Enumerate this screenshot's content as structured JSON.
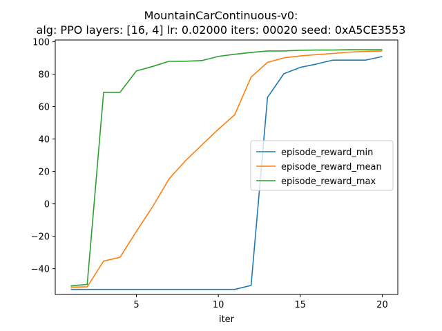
{
  "chart_data": {
    "type": "line",
    "title_line1": "MountainCarContinuous-v0:",
    "title_line2": "alg: PPO layers: [16, 4] lr: 0.02000 iters: 00020 seed: 0xA5CE3553",
    "xlabel": "iter",
    "ylabel": "",
    "xlim": [
      0.05,
      20.95
    ],
    "ylim": [
      -55.9,
      101.1
    ],
    "xticks": [
      5,
      10,
      15,
      20
    ],
    "yticks": [
      -40,
      -20,
      0,
      20,
      40,
      60,
      80,
      100
    ],
    "ytick_labels": [
      "−40",
      "−20",
      "0",
      "20",
      "40",
      "60",
      "80",
      "100"
    ],
    "grid": false,
    "legend_position": "center-right",
    "x": [
      1,
      2,
      3,
      4,
      5,
      6,
      7,
      8,
      9,
      10,
      11,
      12,
      13,
      14,
      15,
      16,
      17,
      18,
      19,
      20
    ],
    "series": [
      {
        "name": "episode_reward_min",
        "color": "#1f77b4",
        "values": [
          -52.8,
          -52.8,
          -52.8,
          -52.8,
          -52.8,
          -52.8,
          -52.8,
          -52.8,
          -52.8,
          -52.8,
          -52.8,
          -50.3,
          65.7,
          80.3,
          84.2,
          86.3,
          88.7,
          88.7,
          88.7,
          90.9
        ]
      },
      {
        "name": "episode_reward_mean",
        "color": "#ff7f0e",
        "values": [
          -51.4,
          -51.2,
          -35.3,
          -33.0,
          -17.0,
          -1.6,
          15.5,
          26.6,
          36.4,
          46.0,
          55.0,
          78.2,
          87.3,
          90.1,
          91.3,
          92.1,
          92.8,
          93.6,
          94.1,
          94.3
        ]
      },
      {
        "name": "episode_reward_max",
        "color": "#2ca02c",
        "values": [
          -50.6,
          -49.7,
          68.8,
          68.8,
          82.0,
          84.8,
          88.0,
          88.0,
          88.4,
          91.0,
          92.3,
          93.4,
          94.3,
          94.3,
          94.8,
          94.9,
          94.9,
          95.1,
          95.1,
          95.1
        ]
      }
    ]
  }
}
